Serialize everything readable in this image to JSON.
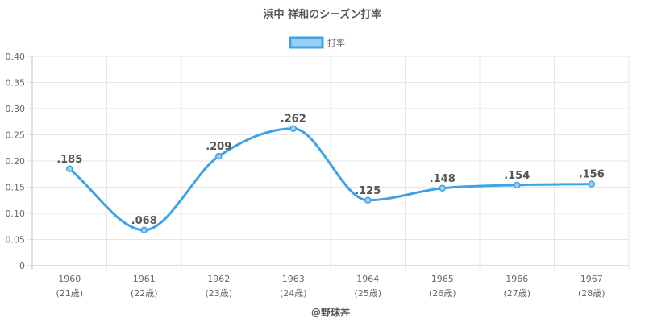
{
  "chart_data": {
    "type": "line",
    "title": "浜中 祥和のシーズン打率",
    "credit": "@野球丼",
    "legend_placement": "top-center",
    "grid": true,
    "categories": [
      "1960",
      "1961",
      "1962",
      "1963",
      "1964",
      "1965",
      "1966",
      "1967"
    ],
    "category_sublabels": [
      "(21歳)",
      "(22歳)",
      "(23歳)",
      "(24歳)",
      "(25歳)",
      "(26歳)",
      "(27歳)",
      "(28歳)"
    ],
    "series": [
      {
        "name": "打率",
        "values": [
          0.185,
          0.068,
          0.209,
          0.262,
          0.125,
          0.148,
          0.154,
          0.156
        ],
        "labels": [
          ".185",
          ".068",
          ".209",
          ".262",
          ".125",
          ".148",
          ".154",
          ".156"
        ],
        "color": "#3ea3e6",
        "fill": "#9bd0f5"
      }
    ],
    "ylim": [
      0,
      0.4
    ],
    "yticks": [
      "0",
      "0.05",
      "0.10",
      "0.15",
      "0.20",
      "0.25",
      "0.30",
      "0.35",
      "0.40"
    ]
  }
}
